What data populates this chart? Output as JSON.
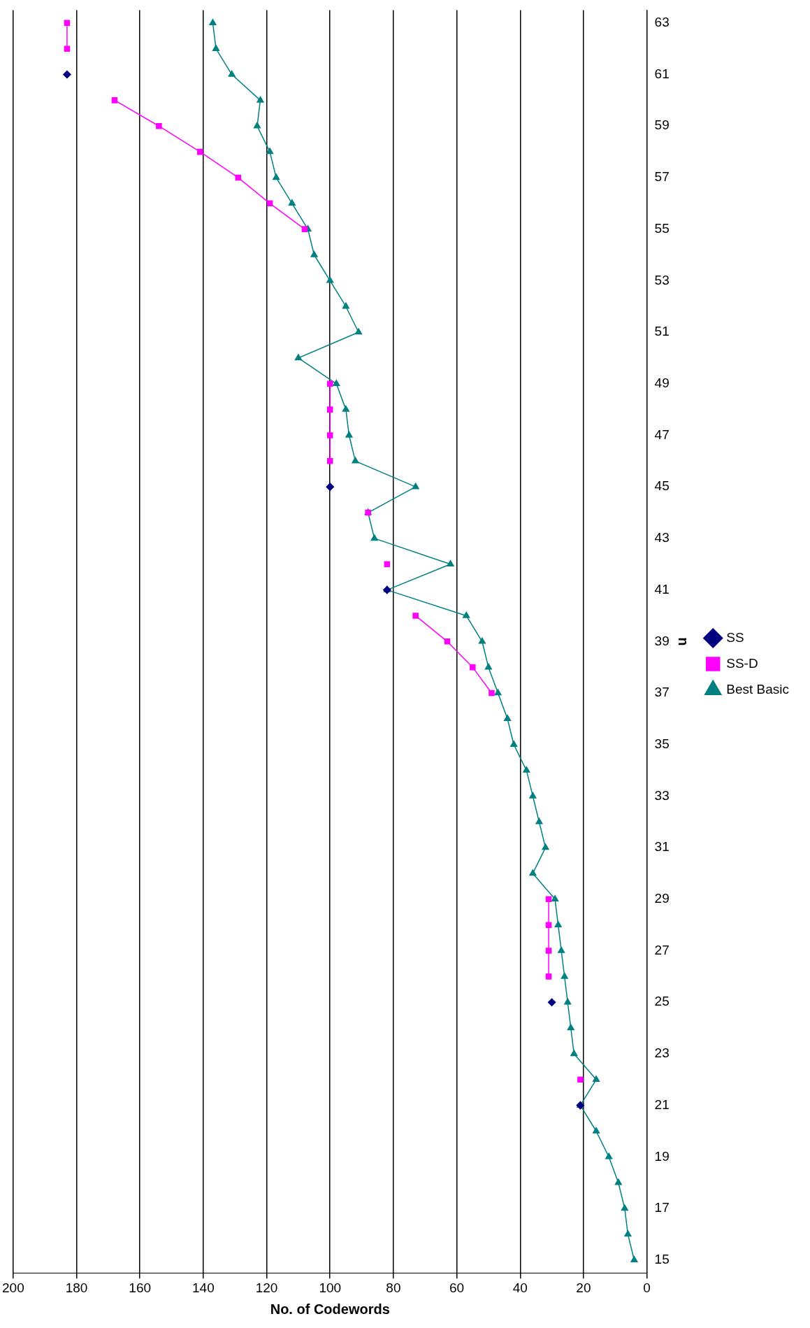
{
  "chart_data": {
    "type": "line",
    "xlabel": "No. of Codewords",
    "ylabel": "n",
    "series": [
      {
        "name": "SS",
        "type": "scatter",
        "color": "#000080",
        "marker": "diamond",
        "x": [
          21,
          30,
          82,
          100,
          183
        ],
        "values": [
          21,
          25,
          41,
          45,
          61
        ]
      },
      {
        "name": "SS-D",
        "color": "#ff00ff",
        "marker": "square",
        "x": [
          21,
          null,
          31,
          31,
          31,
          31,
          null,
          49,
          55,
          63,
          73,
          null,
          82,
          null,
          88,
          null,
          100,
          100,
          100,
          100,
          null,
          108,
          119,
          129,
          141,
          154,
          168,
          null,
          183,
          183
        ],
        "values": [
          22,
          null,
          26,
          27,
          28,
          29,
          null,
          37,
          38,
          39,
          40,
          null,
          42,
          null,
          44,
          null,
          46,
          47,
          48,
          49,
          null,
          55,
          56,
          57,
          58,
          59,
          60,
          null,
          62,
          63
        ]
      },
      {
        "name": "Best Basic",
        "color": "#008080",
        "marker": "triangle",
        "x": [
          4,
          6,
          7,
          9,
          12,
          16,
          21,
          16,
          23,
          24,
          25,
          26,
          27,
          28,
          29,
          36,
          32,
          34,
          36,
          38,
          42,
          44,
          47,
          50,
          52,
          57,
          82,
          62,
          86,
          88,
          73,
          92,
          94,
          95,
          98,
          110,
          91,
          95,
          100,
          105,
          107,
          112,
          117,
          119,
          123,
          122,
          131,
          136,
          137
        ],
        "values": [
          15,
          16,
          17,
          18,
          19,
          20,
          21,
          22,
          23,
          24,
          25,
          26,
          27,
          28,
          29,
          30,
          31,
          32,
          33,
          34,
          35,
          36,
          37,
          38,
          39,
          40,
          41,
          42,
          43,
          44,
          45,
          46,
          47,
          48,
          49,
          50,
          51,
          52,
          53,
          54,
          55,
          56,
          57,
          58,
          59,
          60,
          61,
          62,
          63
        ]
      }
    ],
    "xlim": [
      200,
      0
    ],
    "xticks": [
      200,
      180,
      160,
      140,
      120,
      100,
      80,
      60,
      40,
      20,
      0
    ],
    "ylim": [
      14.5,
      63.5
    ],
    "yticks": [
      15,
      17,
      19,
      21,
      23,
      25,
      27,
      29,
      31,
      33,
      35,
      37,
      39,
      41,
      43,
      45,
      47,
      49,
      51,
      53,
      55,
      57,
      59,
      61,
      63
    ],
    "grid": "x",
    "legend": "right",
    "line_style": "solid"
  }
}
